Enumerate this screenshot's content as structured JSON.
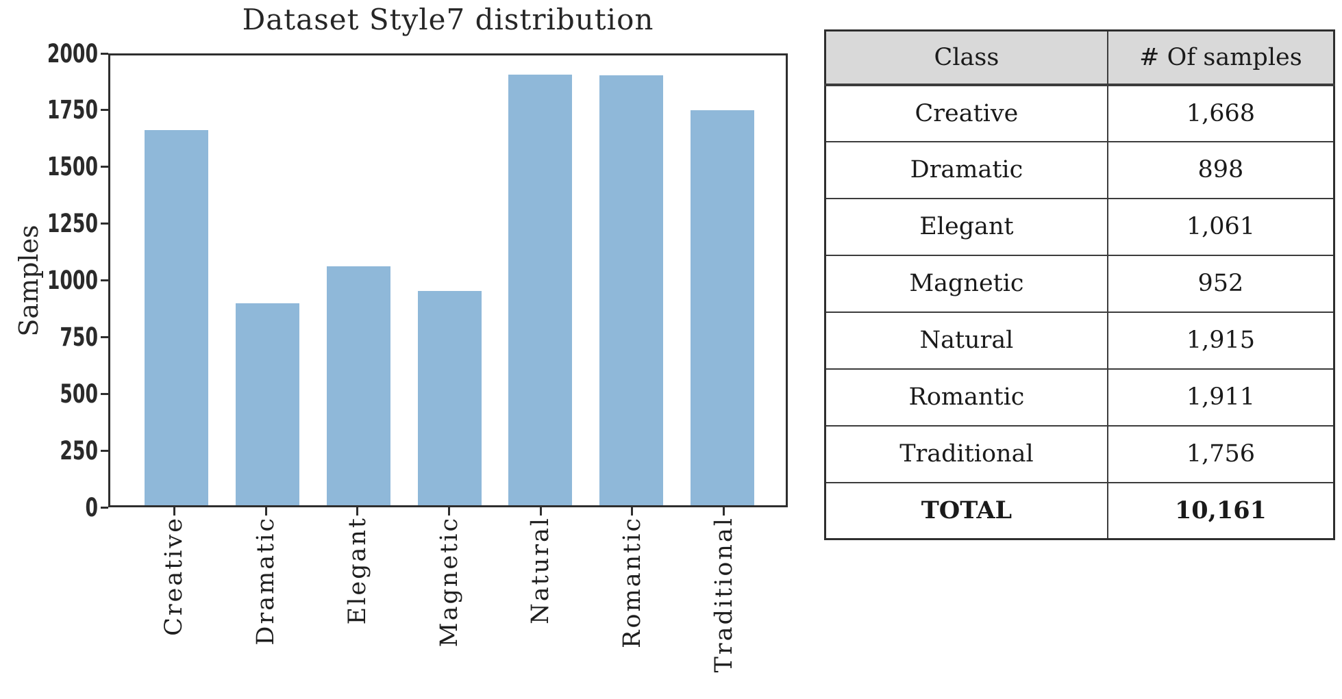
{
  "chart_data": {
    "type": "bar",
    "title": "Dataset Style7 distribution",
    "xlabel": "",
    "ylabel": "Samples",
    "categories": [
      "Creative",
      "Dramatic",
      "Elegant",
      "Magnetic",
      "Natural",
      "Romantic",
      "Traditional"
    ],
    "values": [
      1668,
      898,
      1061,
      952,
      1915,
      1911,
      1756
    ],
    "ylim": [
      0,
      2000
    ],
    "yticks": [
      0,
      250,
      500,
      750,
      1000,
      1250,
      1500,
      1750,
      2000
    ],
    "grid": false,
    "legend_position": "none",
    "bar_color": "#8fb8d9",
    "axis_color": "#2e2e2e"
  },
  "table": {
    "headers": [
      "Class",
      "# Of samples"
    ],
    "rows": [
      [
        "Creative",
        "1,668"
      ],
      [
        "Dramatic",
        "898"
      ],
      [
        "Elegant",
        "1,061"
      ],
      [
        "Magnetic",
        "952"
      ],
      [
        "Natural",
        "1,915"
      ],
      [
        "Romantic",
        "1,911"
      ],
      [
        "Traditional",
        "1,756"
      ]
    ],
    "total_row": [
      "TOTAL",
      "10,161"
    ],
    "header_bg": "#d9d9d9"
  }
}
